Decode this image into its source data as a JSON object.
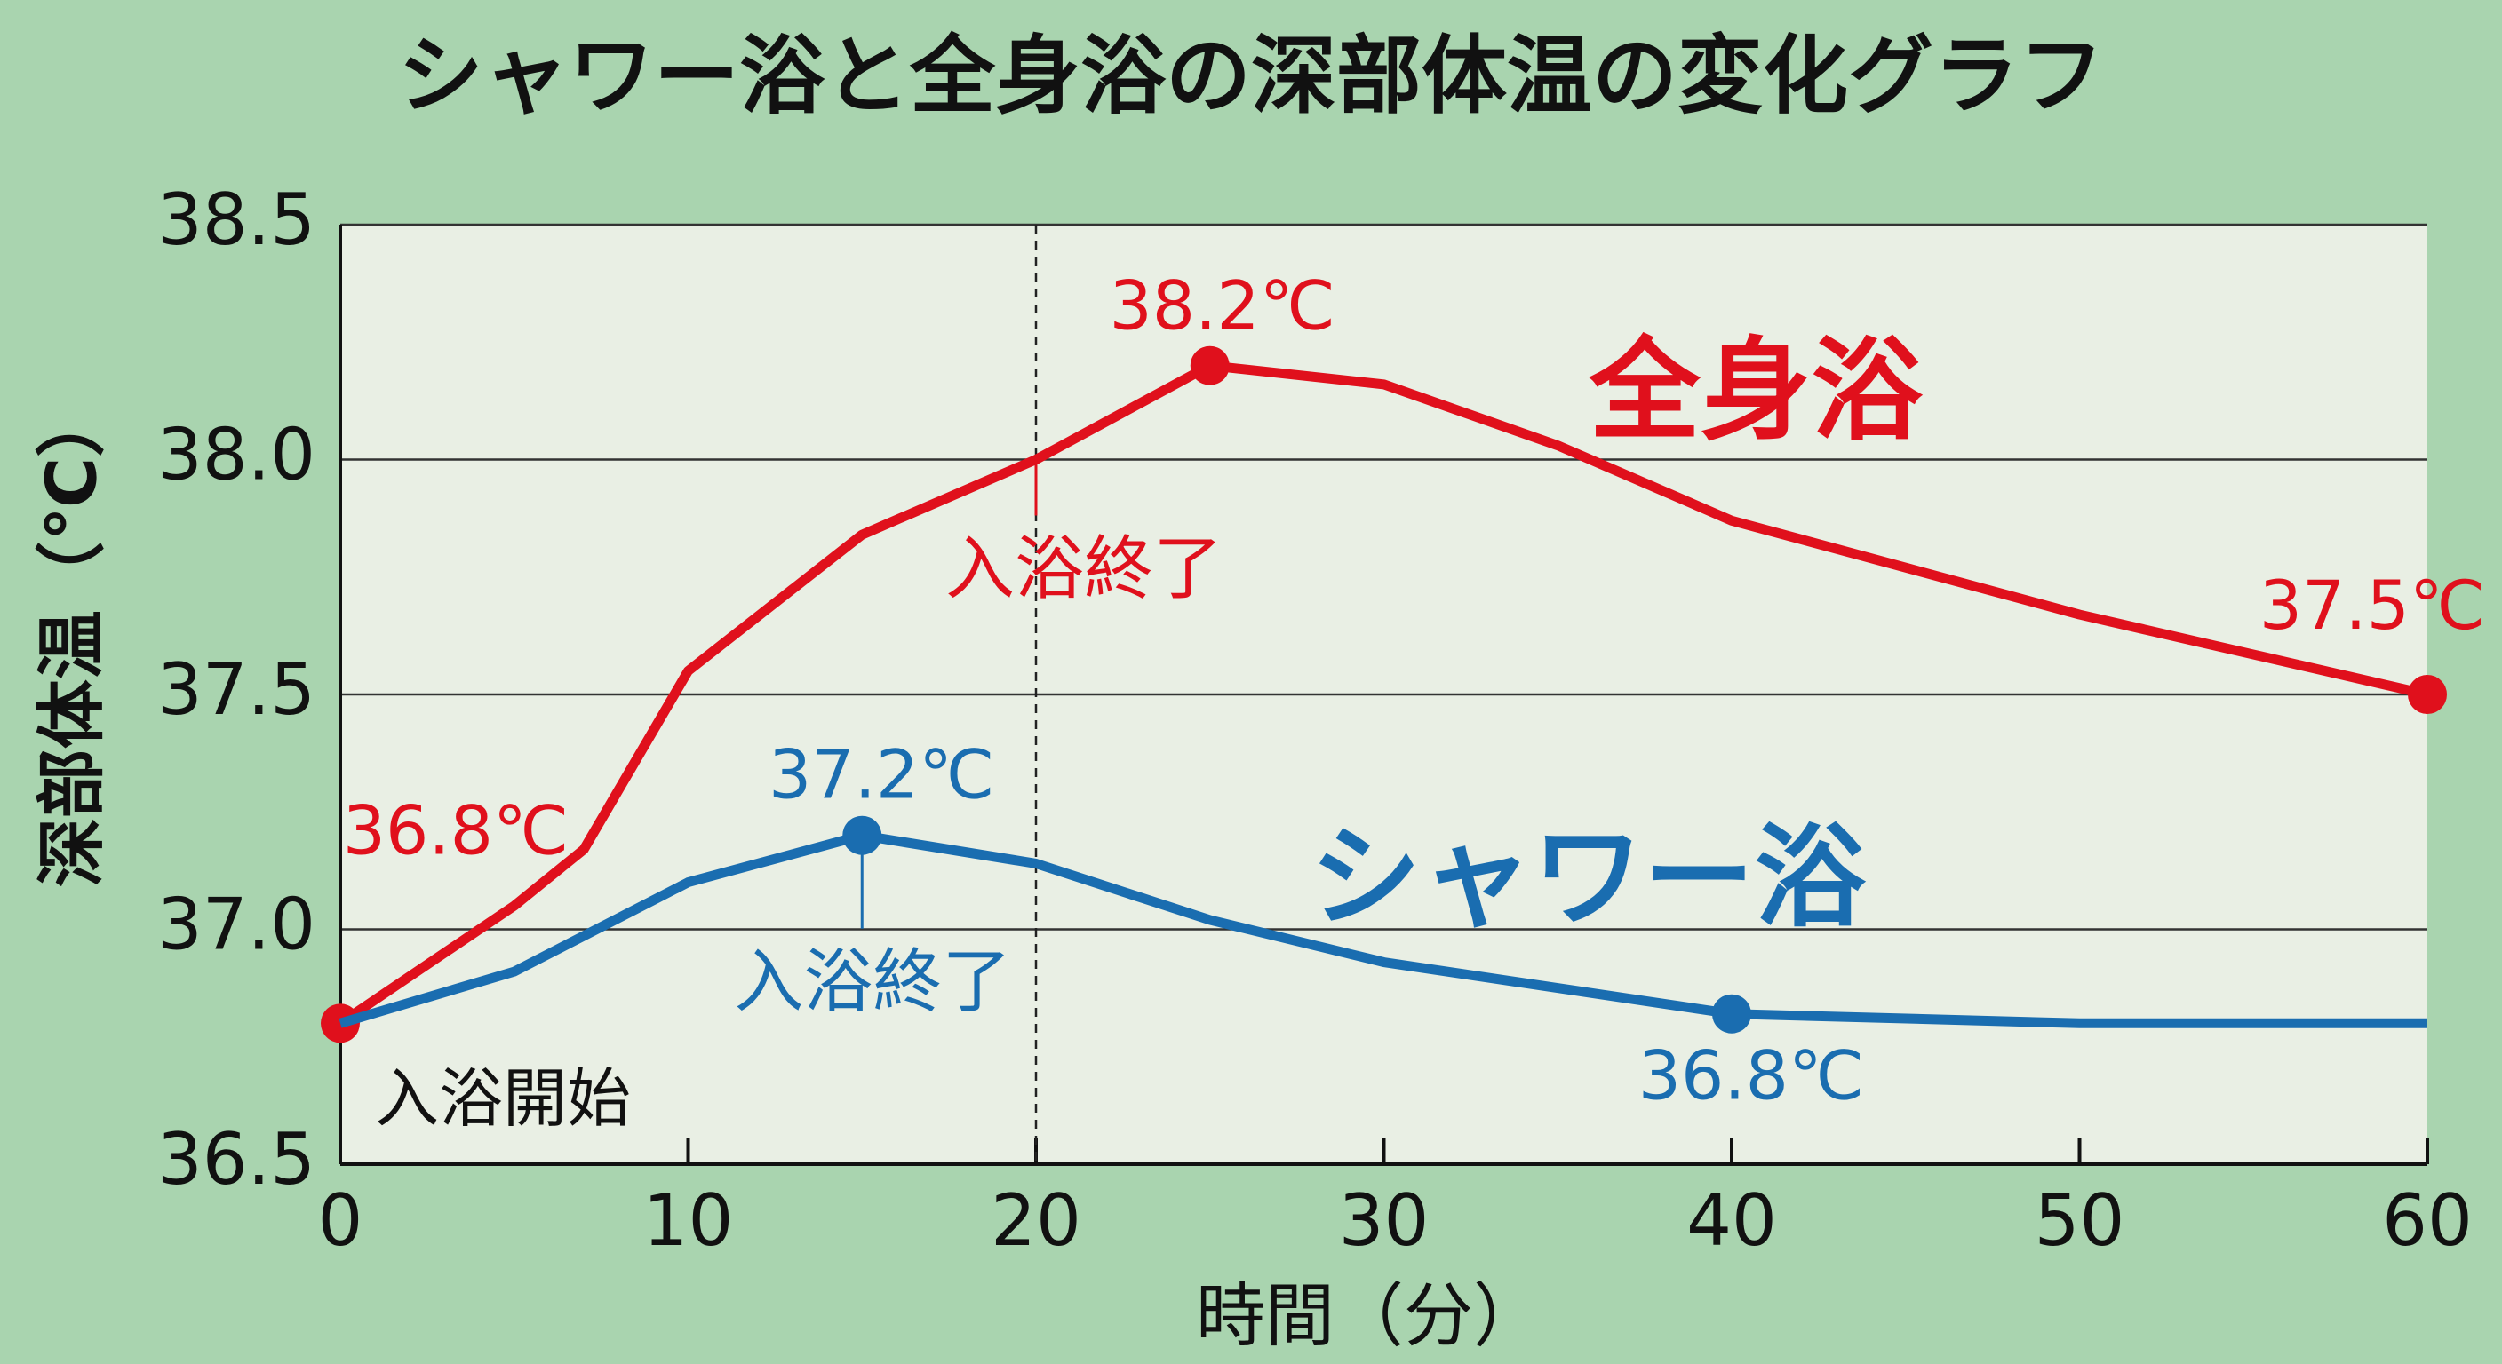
{
  "chart_data": {
    "type": "line",
    "title": "シャワー浴と全身浴の深部体温の変化グラフ",
    "x_label": "時間（分）",
    "y_label": "深部体温（℃）",
    "xlim": [
      0,
      60
    ],
    "xticks": [
      0,
      10,
      20,
      30,
      40,
      50,
      60
    ],
    "ylim": [
      36.5,
      38.5
    ],
    "yticks": [
      36.5,
      {
        "value": 37,
        "label": "37.0"
      },
      37.5,
      {
        "value": 38,
        "label": "38.0"
      },
      38.5
    ],
    "grid": true,
    "vline": 20,
    "start_note": {
      "text": "入浴開始",
      "x": 0
    },
    "series": [
      {
        "name": "全身浴",
        "color": "#e0101c",
        "x": [
          0,
          5,
          7,
          10,
          15,
          20,
          25,
          30,
          35,
          40,
          50,
          60
        ],
        "values": [
          36.8,
          37.05,
          37.17,
          37.55,
          37.84,
          38.0,
          38.2,
          38.16,
          38.03,
          37.87,
          37.67,
          37.5
        ],
        "labels": [
          {
            "x": 0,
            "value": 36.8,
            "text": "36.8℃"
          },
          {
            "x": 25,
            "value": 38.2,
            "text": "38.2℃"
          },
          {
            "x": 60,
            "value": 37.5,
            "text": "37.5℃"
          }
        ],
        "end_note": {
          "text": "入浴終了",
          "x": 20
        }
      },
      {
        "name": "シャワー浴",
        "color": "#1a6db0",
        "x": [
          0,
          5,
          10,
          15,
          20,
          25,
          30,
          40,
          50,
          60
        ],
        "values": [
          36.8,
          36.91,
          37.1,
          37.2,
          37.14,
          37.02,
          36.93,
          36.82,
          36.8,
          36.8
        ],
        "labels": [
          {
            "x": 15,
            "value": 37.2,
            "text": "37.2℃"
          },
          {
            "x": 40,
            "value": 36.82,
            "text": "36.8℃"
          }
        ],
        "end_note": {
          "text": "入浴終了",
          "x": 15
        }
      }
    ]
  }
}
